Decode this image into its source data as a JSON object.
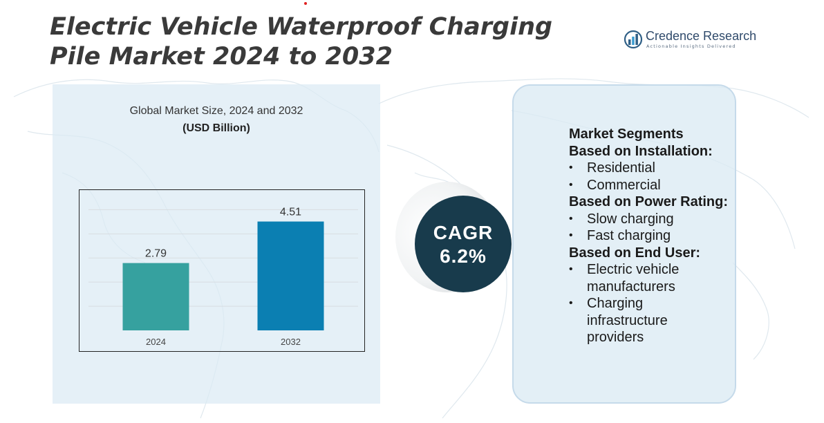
{
  "title": "Electric Vehicle Waterproof Charging Pile Market 2024 to 2032",
  "logo": {
    "icon": "credence-research-logo-icon",
    "name": "Credence Research",
    "tagline": "Actionable Insights Delivered"
  },
  "colors": {
    "title": "#3a3a3a",
    "bar_2024": "#36a19f",
    "bar_2032": "#0b7fb2",
    "cagr_circle": "#183b4c",
    "panel": "#dbeaf4"
  },
  "chart_data": {
    "type": "bar",
    "title": "Global Market Size, 2024 and 2032",
    "unit": "(USD Billion)",
    "categories": [
      "2024",
      "2032"
    ],
    "values": [
      2.79,
      4.51
    ],
    "data_labels": [
      "2.79",
      "4.51"
    ],
    "ylim": [
      0,
      5
    ],
    "grid": true,
    "legend": "none"
  },
  "cagr": {
    "label": "CAGR",
    "value": "6.2%"
  },
  "segments": {
    "title": "Market Segments",
    "groups": [
      {
        "title": "Based on Installation:",
        "items": [
          "Residential",
          "Commercial"
        ]
      },
      {
        "title": "Based on Power Rating:",
        "items": [
          "Slow charging",
          "Fast charging"
        ]
      },
      {
        "title": "Based on End User:",
        "items": [
          "Electric vehicle manufacturers",
          "Charging infrastructure providers"
        ]
      }
    ]
  }
}
